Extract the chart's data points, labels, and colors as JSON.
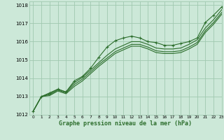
{
  "title": "Graphe pression niveau de la mer (hPa)",
  "bg_color": "#cce8d8",
  "grid_color": "#a0c8b0",
  "line_color": "#2d6e2d",
  "xlim": [
    -0.5,
    23
  ],
  "ylim": [
    1012,
    1018.2
  ],
  "xticks": [
    0,
    1,
    2,
    3,
    4,
    5,
    6,
    7,
    8,
    9,
    10,
    11,
    12,
    13,
    14,
    15,
    16,
    17,
    18,
    19,
    20,
    21,
    22,
    23
  ],
  "yticks": [
    1012,
    1013,
    1014,
    1015,
    1016,
    1017,
    1018
  ],
  "lines": [
    {
      "x": [
        0,
        1,
        2,
        3,
        4,
        5,
        6,
        7,
        8,
        9,
        10,
        11,
        12,
        13,
        14,
        15,
        16,
        17,
        18,
        19,
        20,
        21,
        22,
        23
      ],
      "y": [
        1012.2,
        1013.0,
        1013.2,
        1013.4,
        1013.25,
        1013.85,
        1014.1,
        1014.55,
        1015.15,
        1015.7,
        1016.05,
        1016.2,
        1016.3,
        1016.2,
        1016.0,
        1015.95,
        1015.8,
        1015.8,
        1015.9,
        1016.0,
        1016.2,
        1017.05,
        1017.45,
        1017.9
      ],
      "marker": true
    },
    {
      "x": [
        0,
        1,
        2,
        3,
        4,
        5,
        6,
        7,
        8,
        9,
        10,
        11,
        12,
        13,
        14,
        15,
        16,
        17,
        18,
        19,
        20,
        21,
        22,
        23
      ],
      "y": [
        1012.2,
        1013.0,
        1013.15,
        1013.4,
        1013.25,
        1013.75,
        1014.05,
        1014.45,
        1014.85,
        1015.25,
        1015.6,
        1015.8,
        1016.0,
        1016.0,
        1015.85,
        1015.65,
        1015.6,
        1015.6,
        1015.65,
        1015.85,
        1016.1,
        1016.75,
        1017.2,
        1017.75
      ],
      "marker": false
    },
    {
      "x": [
        0,
        1,
        2,
        3,
        4,
        5,
        6,
        7,
        8,
        9,
        10,
        11,
        12,
        13,
        14,
        15,
        16,
        17,
        18,
        19,
        20,
        21,
        22,
        23
      ],
      "y": [
        1012.2,
        1013.0,
        1013.1,
        1013.35,
        1013.2,
        1013.65,
        1013.95,
        1014.35,
        1014.75,
        1015.1,
        1015.45,
        1015.65,
        1015.85,
        1015.85,
        1015.7,
        1015.5,
        1015.45,
        1015.45,
        1015.5,
        1015.7,
        1015.95,
        1016.6,
        1017.05,
        1017.6
      ],
      "marker": false
    },
    {
      "x": [
        0,
        1,
        2,
        3,
        4,
        5,
        6,
        7,
        8,
        9,
        10,
        11,
        12,
        13,
        14,
        15,
        16,
        17,
        18,
        19,
        20,
        21,
        22,
        23
      ],
      "y": [
        1012.2,
        1013.0,
        1013.05,
        1013.3,
        1013.15,
        1013.55,
        1013.85,
        1014.25,
        1014.65,
        1015.0,
        1015.35,
        1015.55,
        1015.75,
        1015.75,
        1015.6,
        1015.4,
        1015.35,
        1015.35,
        1015.4,
        1015.6,
        1015.85,
        1016.5,
        1016.95,
        1017.5
      ],
      "marker": false
    }
  ],
  "xlabel_fontsize": 6,
  "tick_fontsize": 5,
  "linewidth": 0.8,
  "markersize": 3.5
}
